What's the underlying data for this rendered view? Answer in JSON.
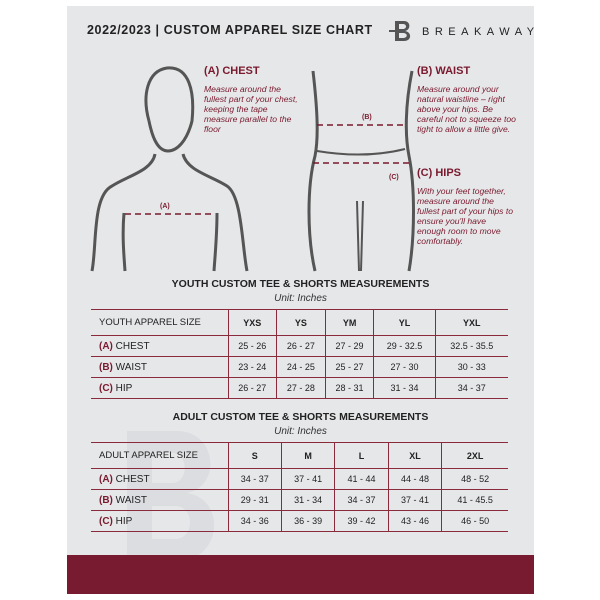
{
  "header": {
    "title": "2022/2023 | CUSTOM APPAREL SIZE CHART",
    "brand": "BREAKAWAY"
  },
  "guides": {
    "chest": {
      "heading": "(A) CHEST",
      "text": "Measure around the fullest part of your chest, keeping the tape measure parallel to the floor",
      "marker": "(A)"
    },
    "waist": {
      "heading": "(B) WAIST",
      "text": "Measure around your natural waistline – right above your hips. Be careful not to squeeze too tight to allow a little give.",
      "marker": "(B)"
    },
    "hips": {
      "heading": "(C) HIPS",
      "text": "With your feet together, measure around the fullest part of your hips to ensure you'll have enough room to move comfortably.",
      "marker": "(C)"
    }
  },
  "colors": {
    "accent": "#781a30",
    "background": "#e6e7e9"
  },
  "youth": {
    "title": "YOUTH CUSTOM TEE & SHORTS MEASUREMENTS",
    "unit": "Unit: Inches",
    "header": [
      "YOUTH APPAREL SIZE",
      "YXS",
      "YS",
      "YM",
      "YL",
      "YXL"
    ],
    "rows": [
      {
        "letter": "(A)",
        "label": "CHEST",
        "values": [
          "25 - 26",
          "26 - 27",
          "27 - 29",
          "29 - 32.5",
          "32.5 - 35.5"
        ]
      },
      {
        "letter": "(B)",
        "label": "WAIST",
        "values": [
          "23 - 24",
          "24 - 25",
          "25 - 27",
          "27 - 30",
          "30 - 33"
        ]
      },
      {
        "letter": "(C)",
        "label": "HIP",
        "values": [
          "26 - 27",
          "27 - 28",
          "28 - 31",
          "31 - 34",
          "34 - 37"
        ]
      }
    ]
  },
  "adult": {
    "title": "ADULT CUSTOM TEE & SHORTS MEASUREMENTS",
    "unit": "Unit: Inches",
    "header": [
      "ADULT APPAREL SIZE",
      "S",
      "M",
      "L",
      "XL",
      "2XL"
    ],
    "rows": [
      {
        "letter": "(A)",
        "label": "CHEST",
        "values": [
          "34 - 37",
          "37 - 41",
          "41 - 44",
          "44 - 48",
          "48 - 52"
        ]
      },
      {
        "letter": "(B)",
        "label": "WAIST",
        "values": [
          "29 - 31",
          "31 - 34",
          "34 - 37",
          "37 - 41",
          "41 - 45.5"
        ]
      },
      {
        "letter": "(C)",
        "label": "HIP",
        "values": [
          "34 - 36",
          "36 - 39",
          "39 - 42",
          "43 - 46",
          "46 - 50"
        ]
      }
    ]
  }
}
